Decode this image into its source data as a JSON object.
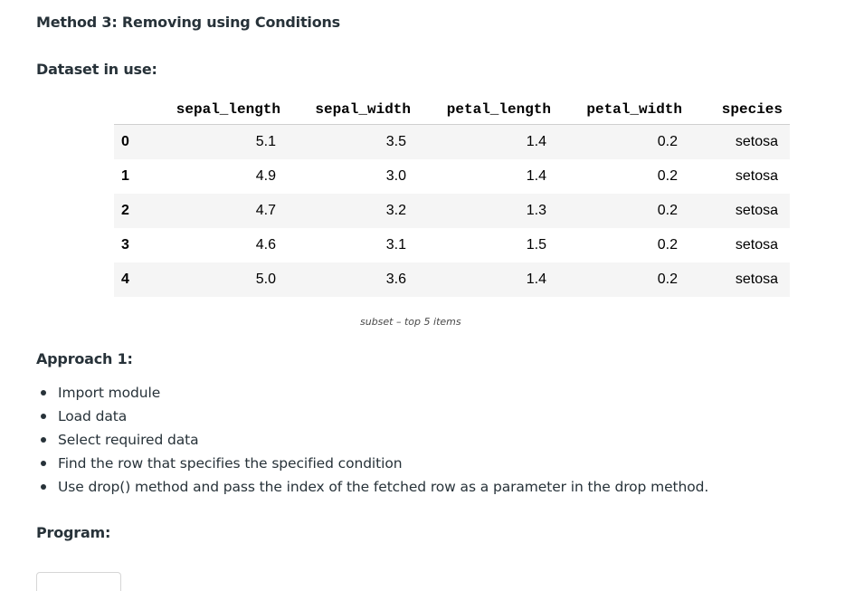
{
  "article": {
    "method_heading": "Method 3: Removing using Conditions",
    "dataset_heading": "Dataset in use:",
    "approach_heading": "Approach 1:",
    "program_heading": "Program:"
  },
  "dataframe": {
    "columns": [
      "sepal_length",
      "sepal_width",
      "petal_length",
      "petal_width",
      "species"
    ],
    "rows": [
      {
        "index": "0",
        "sepal_length": "5.1",
        "sepal_width": "3.5",
        "petal_length": "1.4",
        "petal_width": "0.2",
        "species": "setosa"
      },
      {
        "index": "1",
        "sepal_length": "4.9",
        "sepal_width": "3.0",
        "petal_length": "1.4",
        "petal_width": "0.2",
        "species": "setosa"
      },
      {
        "index": "2",
        "sepal_length": "4.7",
        "sepal_width": "3.2",
        "petal_length": "1.3",
        "petal_width": "0.2",
        "species": "setosa"
      },
      {
        "index": "3",
        "sepal_length": "4.6",
        "sepal_width": "3.1",
        "petal_length": "1.5",
        "petal_width": "0.2",
        "species": "setosa"
      },
      {
        "index": "4",
        "sepal_length": "5.0",
        "sepal_width": "3.6",
        "petal_length": "1.4",
        "petal_width": "0.2",
        "species": "setosa"
      }
    ],
    "caption": "subset – top 5 items"
  },
  "steps": [
    "Import module",
    "Load data",
    "Select required data",
    "Find the row that specifies the specified condition",
    "Use drop() method and pass the index of the fetched row as a parameter in the drop method."
  ]
}
